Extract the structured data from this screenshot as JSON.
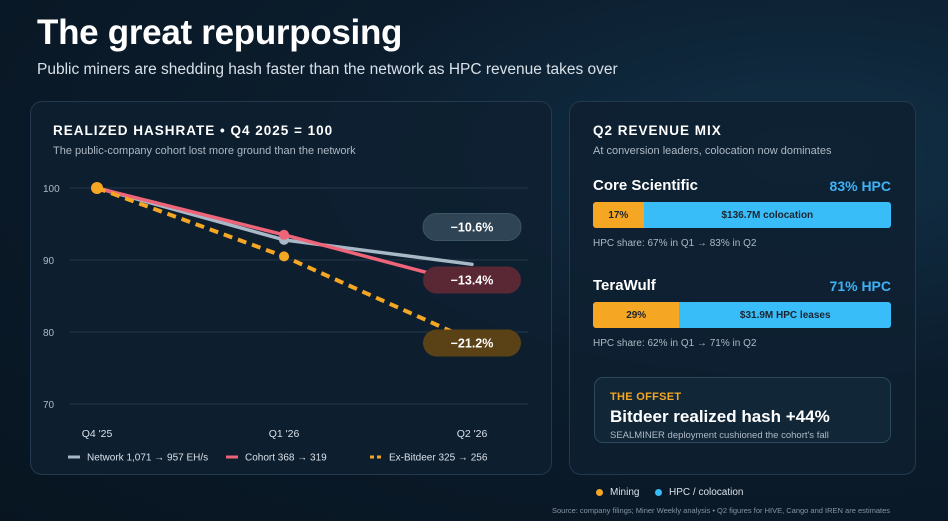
{
  "page": {
    "title": "The great repurposing",
    "subtitle": "Public miners are shedding hash faster than the network as HPC revenue takes over",
    "source": "Source: company filings; Miner Weekly analysis • Q2 figures for HIVE, Cango and IREN are estimates"
  },
  "chart_data": {
    "type": "line",
    "title": "REALIZED HASHRATE • Q4 2025 = 100",
    "subtitle": "The public-company cohort lost more ground than the network",
    "x": [
      "Q4 '25",
      "Q1 '26",
      "Q2 '26"
    ],
    "ylim": [
      70,
      100
    ],
    "yticks": [
      100,
      90,
      80,
      70
    ],
    "grid": true,
    "legend": "bottom",
    "series": [
      {
        "name": "Network 1,071 → 957 EH/s",
        "values": [
          100,
          92.8,
          89.4
        ],
        "color": "#a9b8c6",
        "style": "solid",
        "end_label": "−10.6%",
        "label_bg": "#2f4454"
      },
      {
        "name": "Cohort 368 → 319",
        "values": [
          100,
          93.5,
          86.6
        ],
        "color": "#f0647a",
        "style": "solid",
        "end_label": "−13.4%",
        "label_bg": "#5a2735"
      },
      {
        "name": "Ex-Bitdeer 325 → 256",
        "values": [
          100,
          90.5,
          78.8
        ],
        "color": "#f5a623",
        "style": "dashed",
        "end_label": "−21.2%",
        "label_bg": "#5a4216"
      }
    ]
  },
  "revenue_mix": {
    "title": "Q2 REVENUE MIX",
    "subtitle": "At conversion leaders, colocation now dominates",
    "companies": [
      {
        "name": "Core Scientific",
        "share_label": "83% HPC",
        "mining_pct": 17,
        "mining_label": "17%",
        "hpc_label": "$136.7M colocation",
        "note": "HPC share: 67% in Q1 → 83% in Q2"
      },
      {
        "name": "TeraWulf",
        "share_label": "71% HPC",
        "mining_pct": 29,
        "mining_label": "29%",
        "hpc_label": "$31.9M HPC leases",
        "note": "HPC share: 62% in Q1 → 71% in Q2"
      }
    ],
    "offset": {
      "label": "THE OFFSET",
      "headline": "Bitdeer realized hash +44%",
      "note": "SEALMINER deployment cushioned the cohort's fall"
    },
    "legend": {
      "mining": "Mining",
      "hpc": "HPC / colocation",
      "mining_color": "#f5a623",
      "hpc_color": "#38bdf8"
    }
  }
}
